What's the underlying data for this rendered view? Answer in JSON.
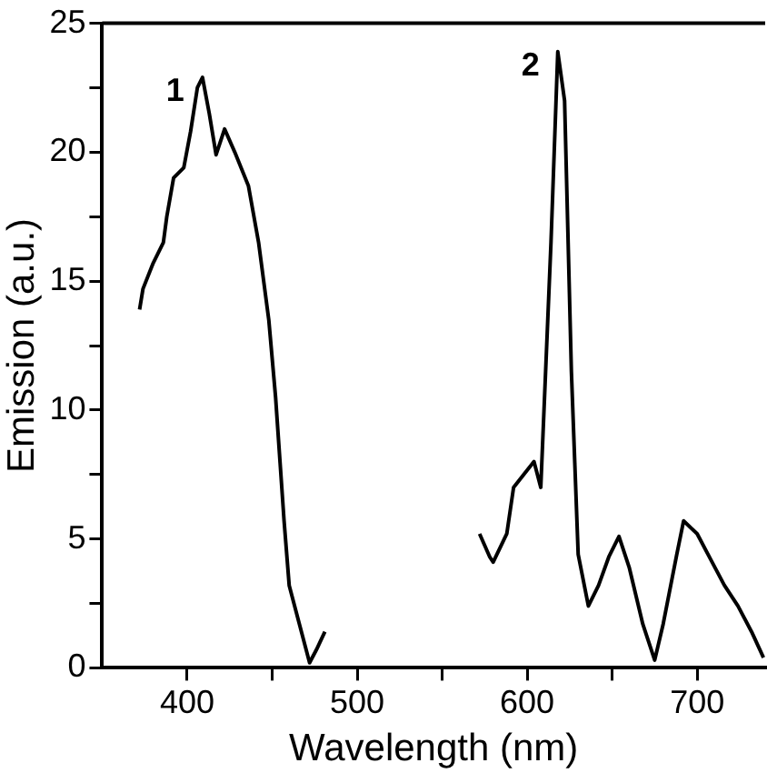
{
  "chart_data": {
    "type": "line",
    "xlabel": "Wavelength (nm)",
    "ylabel": "Emission (a.u.)",
    "xlim": [
      350,
      740
    ],
    "xticks": [
      400,
      {
        "value": 450,
        "label": null
      },
      500,
      {
        "value": 550,
        "label": null
      },
      600,
      {
        "value": 650,
        "label": null
      },
      700
    ],
    "ylim": [
      0,
      25
    ],
    "yticks": [
      0,
      {
        "value": 2.5,
        "label": null
      },
      5,
      {
        "value": 7.5,
        "label": null
      },
      10,
      {
        "value": 12.5,
        "label": null
      },
      15,
      {
        "value": 17.5,
        "label": null
      },
      20,
      {
        "value": 22.5,
        "label": null
      },
      25
    ],
    "grid": false,
    "legend": false,
    "marker": "none",
    "line_style": "solid",
    "series": [
      {
        "name": "1",
        "color": "#000000",
        "x": [
          372,
          374,
          380,
          386,
          388,
          392,
          398,
          402,
          406,
          409,
          413,
          417,
          422,
          428,
          436,
          442,
          448,
          452,
          457,
          460,
          466,
          472,
          476,
          481
        ],
        "values": [
          13.9,
          14.7,
          15.7,
          16.5,
          17.5,
          19.0,
          19.4,
          20.8,
          22.5,
          22.9,
          21.5,
          19.9,
          20.9,
          20.0,
          18.7,
          16.5,
          13.5,
          10.5,
          5.7,
          3.2,
          1.7,
          0.2,
          0.7,
          1.4
        ]
      },
      {
        "name": "2",
        "color": "#000000",
        "x": [
          572,
          578,
          580,
          588,
          592,
          598,
          604,
          608,
          614,
          618,
          622,
          626,
          630,
          636,
          642,
          648,
          654,
          660,
          668,
          675,
          680,
          688,
          692,
          700,
          708,
          716,
          724,
          732,
          739
        ],
        "values": [
          5.2,
          4.3,
          4.1,
          5.2,
          7.0,
          7.5,
          8.0,
          7.0,
          16.5,
          23.9,
          22.0,
          11.5,
          4.4,
          2.4,
          3.2,
          4.3,
          5.1,
          3.9,
          1.7,
          0.3,
          1.7,
          4.4,
          5.7,
          5.2,
          4.2,
          3.2,
          2.4,
          1.4,
          0.4
        ]
      }
    ]
  }
}
